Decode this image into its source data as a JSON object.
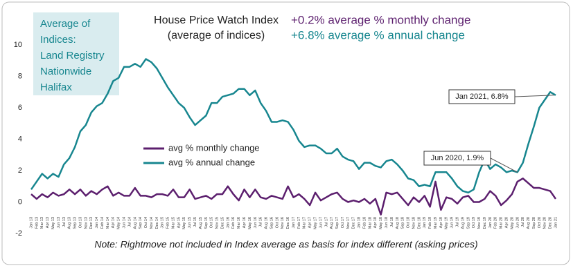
{
  "chart_data": {
    "type": "line",
    "title": "House Price Watch Index",
    "subtitle": "(average of indices)",
    "headline_monthly": "+0.2% average % monthly change",
    "headline_annual": "+6.8% average % annual change",
    "sources_box": [
      "Average of",
      "Indices:",
      "Land Registry",
      "Nationwide",
      "Halifax"
    ],
    "note": "Note: Rightmove not included in Index average as basis for index different (asking prices)",
    "annotations": [
      "Jan 2021, 6.8%",
      "Jun 2020, 1.9%"
    ],
    "categories": [
      "Jan 13",
      "Feb 13",
      "Mar 13",
      "Apr 13",
      "May 13",
      "Jun 13",
      "Jul 13",
      "Aug 13",
      "Sep 13",
      "Oct 13",
      "Nov 13",
      "Dec 13",
      "Jan 14",
      "Feb 14",
      "Mar 14",
      "Apr 14",
      "May 14",
      "Jun 14",
      "Jul 14",
      "Aug 14",
      "Sep 14",
      "Oct 14",
      "Nov 14",
      "Dec 14",
      "Jan 15",
      "Feb 15",
      "Mar 15",
      "Apr 15",
      "May 15",
      "Jun 15",
      "Jul 15",
      "Aug 15",
      "Sep 15",
      "Oct 15",
      "Nov 15",
      "Dec 15",
      "Jan 16",
      "Feb 16",
      "Mar 16",
      "Apr 16",
      "May 16",
      "Jun 16",
      "Jul 16",
      "Aug 16",
      "Sep 16",
      "Oct 16",
      "Nov 16",
      "Dec 16",
      "Jan 17",
      "Feb 17",
      "Mar 17",
      "Apr 17",
      "May 17",
      "Jun 17",
      "Jul 17",
      "Aug 17",
      "Sep 17",
      "Oct 17",
      "Nov 17",
      "Dec 17",
      "Jan 18",
      "Feb 18",
      "Mar 18",
      "Apr 18",
      "May 18",
      "Jun 18",
      "Jul 18",
      "Aug 18",
      "Sep 18",
      "Oct 18",
      "Nov 18",
      "Dec 18",
      "Jan 19",
      "Feb 19",
      "Mar 19",
      "Apr 19",
      "May 19",
      "Jun 19",
      "Jul 19",
      "Aug 19",
      "Sep 19",
      "Oct 19",
      "Nov 19",
      "Dec 19",
      "Jan 20",
      "Feb 20",
      "Mar 20",
      "Apr 20",
      "May 20",
      "Jun 20",
      "Jul 20",
      "Aug 20",
      "Sep 20",
      "Oct 20",
      "Nov 20",
      "Dec 20",
      "Jan 21"
    ],
    "series": [
      {
        "name": "avg % monthly change",
        "color": "#5c1f6e",
        "values": [
          0.5,
          0.2,
          0.5,
          0.3,
          0.6,
          0.4,
          0.5,
          0.8,
          0.5,
          0.8,
          0.4,
          0.7,
          0.5,
          0.8,
          1.0,
          0.4,
          0.6,
          0.4,
          0.4,
          0.9,
          0.4,
          0.4,
          0.3,
          0.5,
          0.5,
          0.4,
          0.8,
          0.3,
          0.3,
          0.8,
          0.2,
          0.3,
          0.4,
          0.2,
          0.5,
          0.5,
          1.0,
          0.5,
          0.1,
          0.8,
          0.3,
          0.8,
          0.3,
          0.2,
          0.4,
          0.3,
          0.2,
          1.0,
          0.3,
          0.5,
          0.2,
          -0.2,
          0.6,
          0.1,
          0.3,
          0.5,
          0.6,
          0.2,
          0.0,
          0.1,
          0.0,
          0.2,
          -0.1,
          0.2,
          -0.8,
          0.6,
          0.5,
          0.6,
          0.2,
          -0.2,
          0.3,
          0.0,
          0.4,
          -0.3,
          1.3,
          -0.5,
          0.3,
          0.2,
          -0.1,
          0.3,
          0.4,
          0.0,
          0.0,
          0.2,
          0.7,
          0.4,
          -0.2,
          0.1,
          0.5,
          1.3,
          1.5,
          1.2,
          0.9,
          0.9,
          0.8,
          0.7,
          0.2
        ]
      },
      {
        "name": "avg % annual change",
        "color": "#17868f",
        "values": [
          0.8,
          1.3,
          1.8,
          1.5,
          1.8,
          1.6,
          2.4,
          2.8,
          3.5,
          4.5,
          4.9,
          5.7,
          6.1,
          6.3,
          6.9,
          7.7,
          7.9,
          8.6,
          8.6,
          8.8,
          8.6,
          9.1,
          8.9,
          8.5,
          7.9,
          7.3,
          6.8,
          6.3,
          6.0,
          5.4,
          4.9,
          5.2,
          5.5,
          6.3,
          6.3,
          6.7,
          6.8,
          6.9,
          7.2,
          7.2,
          6.8,
          7.1,
          6.3,
          5.8,
          5.1,
          5.1,
          5.2,
          5.1,
          4.6,
          3.9,
          3.5,
          3.6,
          3.6,
          3.4,
          3.1,
          3.1,
          3.4,
          2.9,
          2.7,
          2.6,
          2.1,
          2.5,
          2.5,
          2.3,
          2.2,
          2.6,
          2.7,
          2.4,
          2.0,
          1.5,
          1.4,
          1.0,
          1.1,
          1.0,
          1.9,
          1.9,
          1.9,
          1.5,
          1.0,
          0.7,
          0.6,
          0.8,
          1.9,
          2.7,
          2.1,
          2.4,
          2.2,
          1.9,
          2.0,
          1.9,
          2.5,
          3.7,
          4.8,
          6.0,
          6.5,
          7.0,
          6.8
        ]
      }
    ],
    "ylim": [
      -2,
      10
    ],
    "yticks": [
      -2,
      0,
      2,
      4,
      6,
      8,
      10
    ],
    "grid": false
  }
}
